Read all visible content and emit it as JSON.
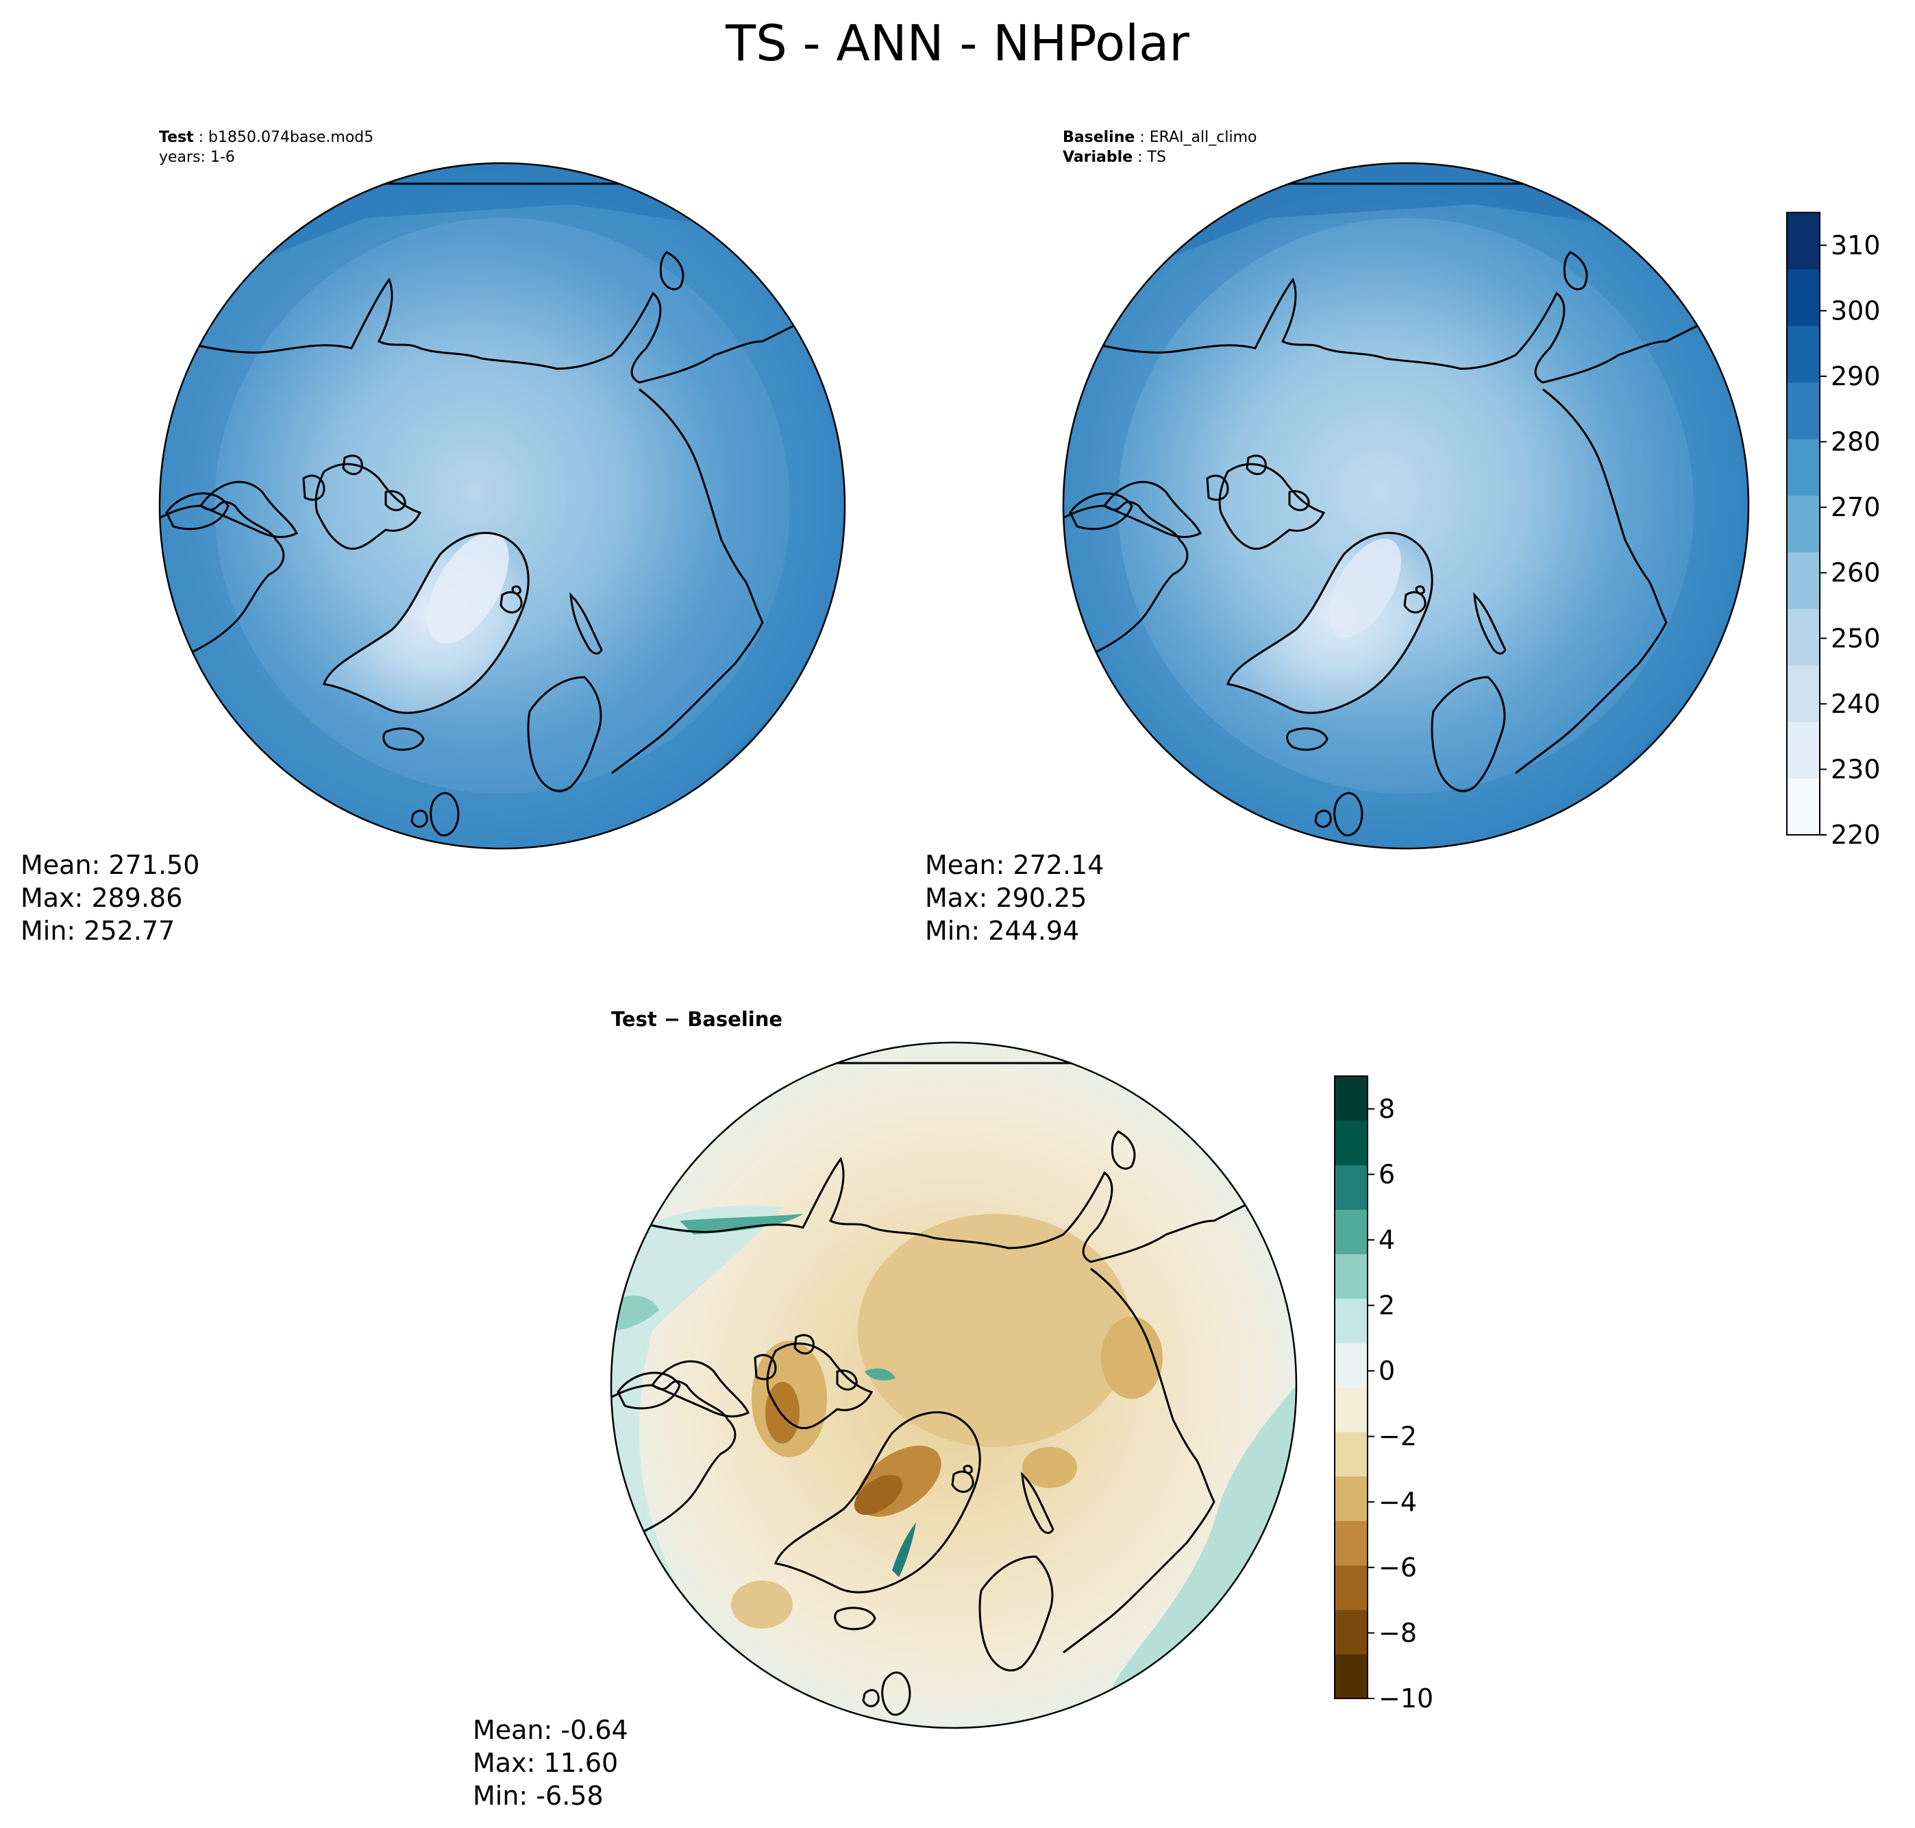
{
  "figure": {
    "title": "TS - ANN - NHPolar"
  },
  "panels": {
    "test": {
      "line1_label": "Test",
      "line1_value": "b1850.074base.mod5",
      "line2": "years: 1-6",
      "mean": "Mean: 271.50",
      "max": "Max: 289.86",
      "min": "Min: 252.77"
    },
    "baseline": {
      "line1_label": "Baseline",
      "line1_value": "ERAI_all_climo",
      "line2_label": "Variable",
      "line2_value": "TS",
      "mean": "Mean: 272.14",
      "max": "Max: 290.25",
      "min": "Min: 244.94"
    },
    "difference": {
      "title": "Test − Baseline",
      "mean": "Mean: -0.64",
      "max": "Max: 11.60",
      "min": "Min: -6.58"
    }
  },
  "colorbars": {
    "main": {
      "colormap": "Blues",
      "ticks": [
        "220",
        "230",
        "240",
        "250",
        "260",
        "270",
        "280",
        "290",
        "300",
        "310"
      ],
      "min": 220,
      "max": 315,
      "colors": [
        "#f7fbff",
        "#e3eef9",
        "#d0e1f2",
        "#b7d4ea",
        "#94c4df",
        "#6aaed6",
        "#4a98c9",
        "#2e7ebc",
        "#1764ab",
        "#084a91",
        "#08306b"
      ]
    },
    "diff": {
      "colormap": "BrBG",
      "ticks": [
        "−10",
        "−8",
        "−6",
        "−4",
        "−2",
        "0",
        "2",
        "4",
        "6",
        "8"
      ],
      "min": -10,
      "max": 9,
      "colors": [
        "#543005",
        "#7a4a0d",
        "#a0661d",
        "#c08a3d",
        "#d8b46c",
        "#ecd9a8",
        "#f5edd8",
        "#eaf3f1",
        "#c4e8e1",
        "#8fd0c3",
        "#52aa9b",
        "#208079",
        "#01564a",
        "#003c30"
      ]
    }
  },
  "maps": {
    "land_outline": "black",
    "ocean_base_test": "#3d8cc4",
    "ocean_base_base": "#3787c2",
    "arctic_test": "#9fc8e3",
    "arctic_base": "#aacfe6",
    "greenland_core": "#dce8f6",
    "diff_base": "#f4ecda",
    "diff_warm": "#d9bc80",
    "diff_cool": "#a7dccf"
  }
}
